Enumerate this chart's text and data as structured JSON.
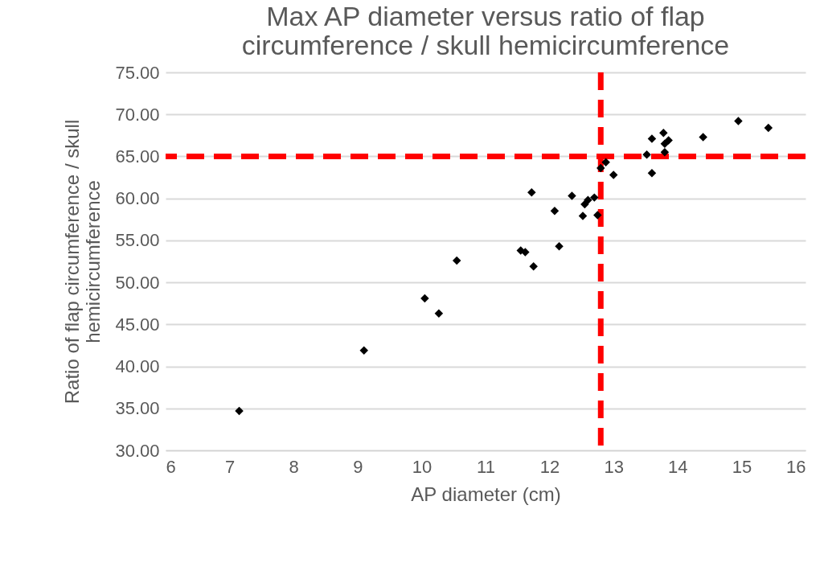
{
  "chart_data": {
    "type": "scatter",
    "title": "Max AP diameter versus ratio of flap\ncircumference / skull hemicircumference",
    "xlabel": "AP diameter (cm)",
    "ylabel": "Ratio of flap circumference / skull\nhemicircumference",
    "x": [
      7.15,
      9.1,
      10.05,
      10.27,
      10.55,
      11.55,
      11.62,
      11.72,
      11.75,
      12.08,
      12.15,
      12.35,
      12.52,
      12.55,
      12.6,
      12.7,
      12.75,
      12.8,
      12.88,
      13.0,
      13.52,
      13.6,
      13.6,
      13.78,
      13.8,
      13.8,
      13.86,
      14.4,
      14.95,
      15.42
    ],
    "series": [
      {
        "color": "#000000",
        "values": [
          34.7,
          41.9,
          48.1,
          46.3,
          52.6,
          53.8,
          53.6,
          60.7,
          51.9,
          58.5,
          54.3,
          60.3,
          57.9,
          59.3,
          59.8,
          60.1,
          58.0,
          63.6,
          64.3,
          62.8,
          65.2,
          63.0,
          67.1,
          67.8,
          66.5,
          65.5,
          66.9,
          67.3,
          69.2,
          68.4
        ]
      }
    ],
    "marker": "diamond",
    "xlim": [
      6,
      16
    ],
    "xticks": [
      6,
      7,
      8,
      9,
      10,
      11,
      12,
      13,
      14,
      15,
      16
    ],
    "ylim": [
      30,
      75
    ],
    "yticks": [
      {
        "value": 30,
        "label": "30.00"
      },
      {
        "value": 35,
        "label": "35.00"
      },
      {
        "value": 40,
        "label": "40.00"
      },
      {
        "value": 45,
        "label": "45.00"
      },
      {
        "value": 50,
        "label": "50.00"
      },
      {
        "value": 55,
        "label": "55.00"
      },
      {
        "value": 60,
        "label": "60.00"
      },
      {
        "value": 65,
        "label": "65.00"
      },
      {
        "value": 70,
        "label": "70.00"
      },
      {
        "value": 75,
        "label": "75.00"
      }
    ],
    "grid": "y",
    "ref_lines": [
      {
        "axis": "x",
        "value": 12.8,
        "color": "#ff0000",
        "line_style": "dashed"
      },
      {
        "axis": "y",
        "value": 65,
        "color": "#ff0000",
        "line_style": "dashed"
      }
    ]
  }
}
